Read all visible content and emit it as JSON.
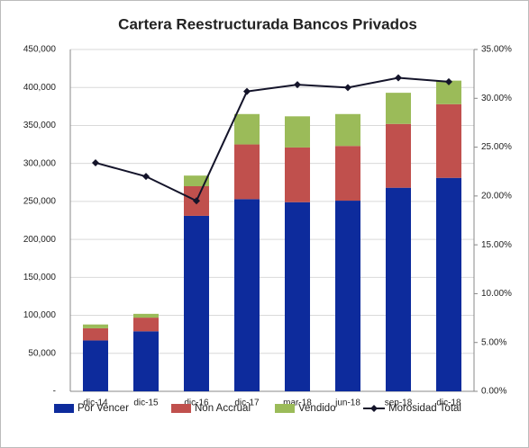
{
  "chart_data": {
    "type": "bar",
    "stacked": true,
    "title": "Cartera Reestructurada Bancos Privados",
    "categories": [
      "dic-14",
      "dic-15",
      "dic-16",
      "dic-17",
      "mar-18",
      "jun-18",
      "sep-18",
      "dic-18"
    ],
    "series": [
      {
        "name": "Por Vencer",
        "color": "#0d2b9c",
        "values": [
          67000,
          79000,
          231000,
          253000,
          249000,
          251000,
          268000,
          281000
        ]
      },
      {
        "name": "Non Accrual",
        "color": "#c0504d",
        "values": [
          16000,
          18000,
          39000,
          72000,
          72000,
          72000,
          84000,
          97000
        ]
      },
      {
        "name": "Vendido",
        "color": "#9bbb59",
        "values": [
          5000,
          5000,
          14000,
          40000,
          41000,
          42000,
          41000,
          31000
        ]
      },
      {
        "name": "Morosidad Total",
        "type": "line",
        "axis": "y2",
        "color": "#14142a",
        "values": [
          23.4,
          22.0,
          19.5,
          30.7,
          31.4,
          31.1,
          32.1,
          31.7
        ]
      }
    ],
    "ylim": [
      0,
      450000
    ],
    "yticks": [
      {
        "value": 0,
        "label": "-"
      },
      {
        "value": 50000,
        "label": "50,000"
      },
      {
        "value": 100000,
        "label": "100,000"
      },
      {
        "value": 150000,
        "label": "150,000"
      },
      {
        "value": 200000,
        "label": "200,000"
      },
      {
        "value": 250000,
        "label": "250,000"
      },
      {
        "value": 300000,
        "label": "300,000"
      },
      {
        "value": 350000,
        "label": "350,000"
      },
      {
        "value": 400000,
        "label": "400,000"
      },
      {
        "value": 450000,
        "label": "450,000"
      }
    ],
    "y2lim": [
      0,
      35
    ],
    "y2ticks": [
      {
        "value": 0,
        "label": "0.00%"
      },
      {
        "value": 5,
        "label": "5.00%"
      },
      {
        "value": 10,
        "label": "10.00%"
      },
      {
        "value": 15,
        "label": "15.00%"
      },
      {
        "value": 20,
        "label": "20.00%"
      },
      {
        "value": 25,
        "label": "25.00%"
      },
      {
        "value": 30,
        "label": "30.00%"
      },
      {
        "value": 35,
        "label": "35.00%"
      }
    ],
    "grid": true,
    "legend": "bottom"
  }
}
